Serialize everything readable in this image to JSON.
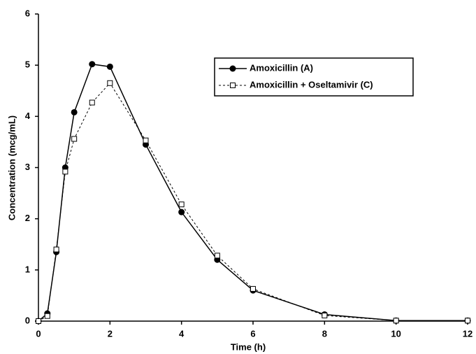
{
  "chart_data": {
    "type": "line",
    "x_label": "Time (h)",
    "y_label": "Concentration (mcg/mL)",
    "x": [
      0,
      0.25,
      0.5,
      0.75,
      1,
      1.5,
      2,
      3,
      4,
      5,
      6,
      8,
      10,
      12
    ],
    "series": [
      {
        "name": "Amoxicillin (A)",
        "color": "#000000",
        "marker": "circle",
        "dash": false,
        "values": [
          0,
          0.15,
          1.35,
          3.0,
          4.08,
          5.02,
          4.97,
          3.45,
          2.13,
          1.2,
          0.6,
          0.13,
          0.01,
          0.01
        ]
      },
      {
        "name": "Amoxicillin + Oseltamivir (C)",
        "color": "#000000",
        "marker": "square",
        "dash": true,
        "values": [
          0,
          0.1,
          1.4,
          2.92,
          3.56,
          4.27,
          4.65,
          3.53,
          2.28,
          1.28,
          0.63,
          0.11,
          0.01,
          0.01
        ]
      }
    ],
    "xlim": [
      0,
      12
    ],
    "xticks": [
      0,
      2,
      4,
      6,
      8,
      10,
      12
    ],
    "ylim": [
      0,
      6
    ],
    "yticks": [
      0,
      1,
      2,
      3,
      4,
      5,
      6
    ],
    "legend": "upper-right"
  }
}
